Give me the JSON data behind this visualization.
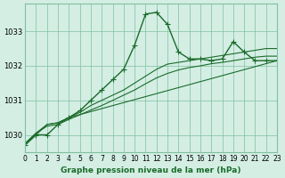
{
  "title": "Graphe pression niveau de la mer (hPa)",
  "background_color": "#d4eee4",
  "grid_color": "#7fbf9f",
  "line_color": "#1a6b2a",
  "xlim": [
    0,
    23
  ],
  "ylim": [
    1029.5,
    1033.8
  ],
  "yticks": [
    1030,
    1031,
    1032,
    1033
  ],
  "xtick_labels": [
    "0",
    "1",
    "2",
    "3",
    "4",
    "5",
    "6",
    "7",
    "8",
    "9",
    "10",
    "11",
    "12",
    "13",
    "14",
    "15",
    "16",
    "17",
    "18",
    "19",
    "20",
    "21",
    "22",
    "23"
  ],
  "series": [
    {
      "x": [
        0,
        1,
        2,
        3,
        4,
        5,
        6,
        7,
        8,
        9,
        10,
        11,
        12,
        13,
        14,
        15,
        16,
        17,
        18,
        19,
        20,
        21,
        22,
        23
      ],
      "y": [
        1029.7,
        1030.0,
        1030.0,
        1030.3,
        1030.5,
        1030.7,
        1031.0,
        1031.3,
        1031.6,
        1031.9,
        1032.6,
        1033.5,
        1033.55,
        1033.2,
        1032.4,
        1032.2,
        1032.2,
        1032.15,
        1032.2,
        1032.7,
        1032.4,
        1032.15,
        1032.15,
        1032.15
      ],
      "marker": "+"
    },
    {
      "x": [
        0,
        1,
        2,
        3,
        4,
        5,
        6,
        7,
        8,
        9,
        10,
        11,
        12,
        13,
        14,
        15,
        16,
        17,
        18,
        19,
        20,
        21,
        22,
        23
      ],
      "y": [
        1029.75,
        1030.05,
        1030.3,
        1030.35,
        1030.5,
        1030.65,
        1030.85,
        1031.0,
        1031.15,
        1031.3,
        1031.5,
        1031.7,
        1031.9,
        1032.05,
        1032.1,
        1032.15,
        1032.2,
        1032.25,
        1032.3,
        1032.35,
        1032.4,
        1032.45,
        1032.5,
        1032.5
      ],
      "marker": null
    },
    {
      "x": [
        0,
        1,
        2,
        3,
        4,
        5,
        6,
        7,
        8,
        9,
        10,
        11,
        12,
        13,
        14,
        15,
        16,
        17,
        18,
        19,
        20,
        21,
        22,
        23
      ],
      "y": [
        1029.75,
        1030.05,
        1030.25,
        1030.3,
        1030.45,
        1030.58,
        1030.72,
        1030.85,
        1031.0,
        1031.15,
        1031.3,
        1031.48,
        1031.65,
        1031.78,
        1031.88,
        1031.95,
        1032.0,
        1032.06,
        1032.1,
        1032.15,
        1032.2,
        1032.25,
        1032.28,
        1032.28
      ],
      "marker": null
    },
    {
      "x": [
        0,
        1,
        2,
        3,
        4,
        23
      ],
      "y": [
        1029.75,
        1030.0,
        1030.3,
        1030.35,
        1030.5,
        1032.15
      ],
      "marker": null
    }
  ]
}
